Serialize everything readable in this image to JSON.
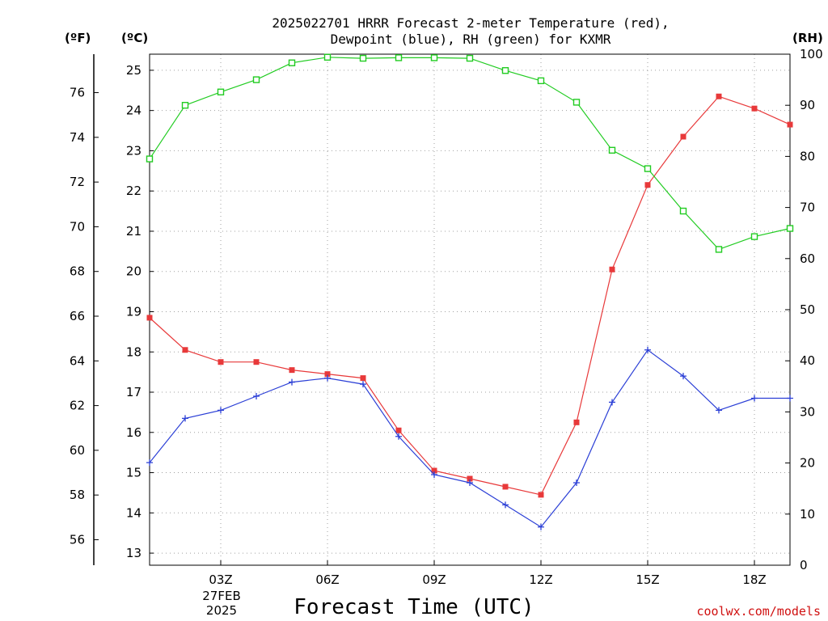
{
  "title_line1": "2025022701 HRRR Forecast 2-meter Temperature (red),",
  "title_line2": "Dewpoint (blue), RH (green) for KXMR",
  "units": {
    "fahrenheit": "(ºF)",
    "celsius": "(ºC)",
    "rh": "(RH)"
  },
  "xlabel": "Forecast Time (UTC)",
  "date_label_line1": "27FEB",
  "date_label_line2": "2025",
  "credit": "coolwx.com/models",
  "chart_data": {
    "type": "line",
    "title": "2025022701 HRRR Forecast 2-meter Temperature (red), Dewpoint (blue), RH (green) for KXMR",
    "xlabel": "Forecast Time (UTC)",
    "x_unit": "hour UTC, 27 FEB 2025",
    "x": [
      1,
      2,
      3,
      4,
      5,
      6,
      7,
      8,
      9,
      10,
      11,
      12,
      13,
      14,
      15,
      16,
      17,
      18,
      19
    ],
    "xlim": [
      1,
      19
    ],
    "x_ticks": [
      {
        "x": 3,
        "label": "03Z"
      },
      {
        "x": 6,
        "label": "06Z"
      },
      {
        "x": 9,
        "label": "09Z"
      },
      {
        "x": 12,
        "label": "12Z"
      },
      {
        "x": 15,
        "label": "15Z"
      },
      {
        "x": 18,
        "label": "18Z"
      }
    ],
    "ylim_celsius": [
      12.7,
      25.4
    ],
    "yticks_celsius": [
      13,
      14,
      15,
      16,
      17,
      18,
      19,
      20,
      21,
      22,
      23,
      24,
      25
    ],
    "yticks_fahrenheit": [
      56,
      58,
      60,
      62,
      64,
      66,
      68,
      70,
      72,
      74,
      76
    ],
    "ylim_rh": [
      0,
      100
    ],
    "yticks_rh": [
      0,
      10,
      20,
      30,
      40,
      50,
      60,
      70,
      80,
      90,
      100
    ],
    "grid": true,
    "series": [
      {
        "name": "Temperature (red)",
        "axis": "celsius",
        "color": "#e8393a",
        "marker": "filled-square",
        "values": [
          18.85,
          18.05,
          17.75,
          17.75,
          17.55,
          17.45,
          17.35,
          16.05,
          15.05,
          14.85,
          14.65,
          14.45,
          16.25,
          20.05,
          22.15,
          23.35,
          24.35,
          24.05,
          23.65
        ]
      },
      {
        "name": "Dewpoint (blue)",
        "axis": "celsius",
        "color": "#2b3fd6",
        "marker": "plus",
        "values": [
          15.25,
          16.35,
          16.55,
          16.9,
          17.25,
          17.35,
          17.2,
          15.9,
          14.95,
          14.75,
          14.2,
          13.65,
          14.75,
          16.75,
          18.05,
          17.4,
          16.55,
          16.85,
          16.85
        ]
      },
      {
        "name": "RH (green)",
        "axis": "rh",
        "color": "#22cc22",
        "marker": "open-square",
        "values": [
          79.5,
          90,
          92.6,
          95,
          98.3,
          99.4,
          99.2,
          99.3,
          99.3,
          99.2,
          96.8,
          94.8,
          90.6,
          81.2,
          77.6,
          69.3,
          61.8,
          64.3,
          65.9
        ]
      }
    ]
  }
}
